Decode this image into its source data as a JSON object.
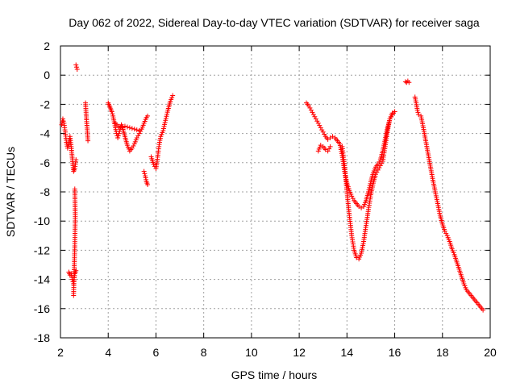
{
  "chart_data": {
    "type": "scatter",
    "title": "Day 062 of 2022, Sidereal Day-to-day VTEC variation (SDTVAR) for receiver saga",
    "xlabel": "GPS time / hours",
    "ylabel": "SDTVAR / TECUs",
    "xlim": [
      2,
      20
    ],
    "ylim": [
      -18,
      2
    ],
    "xticks": [
      "2",
      "4",
      "6",
      "8",
      "10",
      "12",
      "14",
      "16",
      "18",
      "20"
    ],
    "yticks": [
      "2",
      "0",
      "-2",
      "-4",
      "-6",
      "-8",
      "-10",
      "-12",
      "-14",
      "-16",
      "-18"
    ],
    "grid": true,
    "marker": "+",
    "color": "#ff0000",
    "series": [
      {
        "name": "SDTVAR",
        "segments": [
          [
            [
              2.05,
              -3.4
            ],
            [
              2.1,
              -3.0
            ],
            [
              2.15,
              -3.3
            ],
            [
              2.2,
              -3.9
            ],
            [
              2.25,
              -4.6
            ],
            [
              2.3,
              -5.0
            ],
            [
              2.35,
              -4.7
            ],
            [
              2.4,
              -4.2
            ],
            [
              2.45,
              -4.9
            ],
            [
              2.5,
              -5.8
            ],
            [
              2.55,
              -6.6
            ],
            [
              2.6,
              -6.4
            ],
            [
              2.65,
              -5.8
            ]
          ],
          [
            [
              2.35,
              -13.5
            ],
            [
              2.4,
              -13.7
            ],
            [
              2.45,
              -13.6
            ],
            [
              2.5,
              -14.0
            ],
            [
              2.55,
              -14.3
            ],
            [
              2.6,
              -13.6
            ],
            [
              2.65,
              -13.4
            ]
          ],
          [
            [
              2.6,
              -7.8
            ],
            [
              2.62,
              -9.7
            ],
            [
              2.6,
              -11.7
            ],
            [
              2.55,
              -15.1
            ]
          ],
          [
            [
              2.65,
              0.7
            ],
            [
              2.7,
              0.4
            ]
          ],
          [
            [
              3.05,
              -1.9
            ],
            [
              3.08,
              -2.8
            ],
            [
              3.12,
              -3.7
            ],
            [
              3.15,
              -4.5
            ]
          ],
          [
            [
              4.0,
              -1.9
            ],
            [
              4.05,
              -2.1
            ],
            [
              4.1,
              -2.3
            ],
            [
              4.15,
              -2.5
            ],
            [
              4.2,
              -2.8
            ],
            [
              4.25,
              -3.2
            ],
            [
              4.3,
              -3.6
            ],
            [
              4.35,
              -4.0
            ],
            [
              4.4,
              -4.3
            ],
            [
              4.45,
              -4.0
            ],
            [
              4.5,
              -3.7
            ],
            [
              4.55,
              -3.4
            ],
            [
              4.6,
              -3.6
            ],
            [
              4.7,
              -4.2
            ],
            [
              4.8,
              -4.8
            ],
            [
              4.9,
              -5.2
            ],
            [
              5.0,
              -5.0
            ],
            [
              5.1,
              -4.7
            ],
            [
              5.2,
              -4.3
            ],
            [
              5.3,
              -4.0
            ],
            [
              5.4,
              -3.7
            ],
            [
              5.5,
              -3.3
            ],
            [
              5.6,
              -2.9
            ],
            [
              5.65,
              -2.8
            ]
          ],
          [
            [
              4.3,
              -3.3
            ],
            [
              4.5,
              -3.6
            ],
            [
              4.7,
              -3.5
            ],
            [
              4.9,
              -3.6
            ],
            [
              5.1,
              -3.7
            ],
            [
              5.3,
              -3.8
            ]
          ],
          [
            [
              5.5,
              -6.6
            ],
            [
              5.55,
              -6.9
            ],
            [
              5.6,
              -7.3
            ],
            [
              5.65,
              -7.5
            ]
          ],
          [
            [
              5.8,
              -5.6
            ],
            [
              5.9,
              -6.1
            ],
            [
              6.0,
              -6.4
            ],
            [
              6.05,
              -5.9
            ],
            [
              6.1,
              -5.2
            ],
            [
              6.15,
              -4.6
            ],
            [
              6.2,
              -4.2
            ],
            [
              6.3,
              -3.8
            ],
            [
              6.4,
              -3.1
            ],
            [
              6.5,
              -2.4
            ],
            [
              6.6,
              -1.8
            ],
            [
              6.7,
              -1.4
            ]
          ],
          [
            [
              12.3,
              -1.9
            ],
            [
              12.4,
              -2.1
            ],
            [
              12.5,
              -2.4
            ],
            [
              12.6,
              -2.7
            ],
            [
              12.7,
              -3.0
            ],
            [
              12.8,
              -3.3
            ],
            [
              12.9,
              -3.6
            ],
            [
              13.0,
              -3.9
            ],
            [
              13.1,
              -4.2
            ],
            [
              13.2,
              -4.4
            ],
            [
              13.3,
              -4.3
            ],
            [
              13.4,
              -4.2
            ],
            [
              13.5,
              -4.3
            ],
            [
              13.6,
              -4.5
            ],
            [
              13.7,
              -4.7
            ],
            [
              13.8,
              -5.5
            ],
            [
              13.9,
              -6.6
            ],
            [
              14.0,
              -7.4
            ],
            [
              14.1,
              -7.9
            ],
            [
              14.2,
              -8.3
            ],
            [
              14.3,
              -8.6
            ],
            [
              14.4,
              -8.8
            ],
            [
              14.5,
              -9.0
            ],
            [
              14.6,
              -9.1
            ],
            [
              14.7,
              -9.0
            ],
            [
              14.8,
              -8.6
            ],
            [
              14.9,
              -8.0
            ],
            [
              15.0,
              -7.3
            ],
            [
              15.1,
              -6.7
            ],
            [
              15.2,
              -6.3
            ],
            [
              15.3,
              -6.1
            ],
            [
              15.4,
              -5.8
            ],
            [
              15.5,
              -5.2
            ],
            [
              15.6,
              -4.4
            ],
            [
              15.7,
              -3.6
            ],
            [
              15.8,
              -3.0
            ],
            [
              15.9,
              -2.7
            ],
            [
              16.0,
              -2.5
            ]
          ],
          [
            [
              12.8,
              -5.2
            ],
            [
              12.9,
              -4.8
            ],
            [
              13.0,
              -4.9
            ],
            [
              13.1,
              -5.1
            ],
            [
              13.2,
              -5.2
            ],
            [
              13.3,
              -4.9
            ]
          ],
          [
            [
              13.8,
              -4.9
            ],
            [
              13.9,
              -6.2
            ],
            [
              14.0,
              -8.0
            ],
            [
              14.1,
              -9.6
            ],
            [
              14.2,
              -11.0
            ],
            [
              14.3,
              -12.0
            ],
            [
              14.4,
              -12.5
            ],
            [
              14.5,
              -12.6
            ],
            [
              14.6,
              -12.2
            ],
            [
              14.7,
              -11.4
            ],
            [
              14.8,
              -10.3
            ],
            [
              14.9,
              -9.2
            ],
            [
              15.0,
              -8.2
            ],
            [
              15.1,
              -7.4
            ],
            [
              15.2,
              -6.8
            ],
            [
              15.3,
              -6.5
            ],
            [
              15.4,
              -6.2
            ],
            [
              15.5,
              -5.9
            ],
            [
              15.6,
              -4.9
            ],
            [
              15.7,
              -3.8
            ],
            [
              15.8,
              -3.0
            ],
            [
              15.9,
              -2.6
            ],
            [
              16.0,
              -2.5
            ]
          ],
          [
            [
              16.45,
              -0.45
            ],
            [
              16.5,
              -0.5
            ],
            [
              16.55,
              -0.4
            ],
            [
              16.6,
              -0.5
            ]
          ],
          [
            [
              16.85,
              -1.5
            ],
            [
              16.9,
              -1.9
            ],
            [
              16.95,
              -2.4
            ],
            [
              17.0,
              -2.7
            ],
            [
              17.1,
              -2.8
            ],
            [
              17.2,
              -3.6
            ],
            [
              17.3,
              -4.5
            ],
            [
              17.4,
              -5.4
            ],
            [
              17.5,
              -6.3
            ],
            [
              17.6,
              -7.2
            ],
            [
              17.7,
              -8.0
            ],
            [
              17.8,
              -8.8
            ],
            [
              17.9,
              -9.6
            ],
            [
              18.0,
              -10.2
            ],
            [
              18.1,
              -10.7
            ],
            [
              18.2,
              -11.0
            ],
            [
              18.3,
              -11.4
            ],
            [
              18.4,
              -11.9
            ],
            [
              18.5,
              -12.3
            ],
            [
              18.6,
              -12.8
            ],
            [
              18.7,
              -13.3
            ],
            [
              18.8,
              -13.8
            ],
            [
              18.9,
              -14.3
            ],
            [
              19.0,
              -14.7
            ],
            [
              19.1,
              -14.9
            ],
            [
              19.2,
              -15.1
            ],
            [
              19.3,
              -15.3
            ],
            [
              19.4,
              -15.5
            ],
            [
              19.5,
              -15.7
            ],
            [
              19.6,
              -15.9
            ],
            [
              19.7,
              -16.1
            ]
          ]
        ]
      }
    ]
  }
}
